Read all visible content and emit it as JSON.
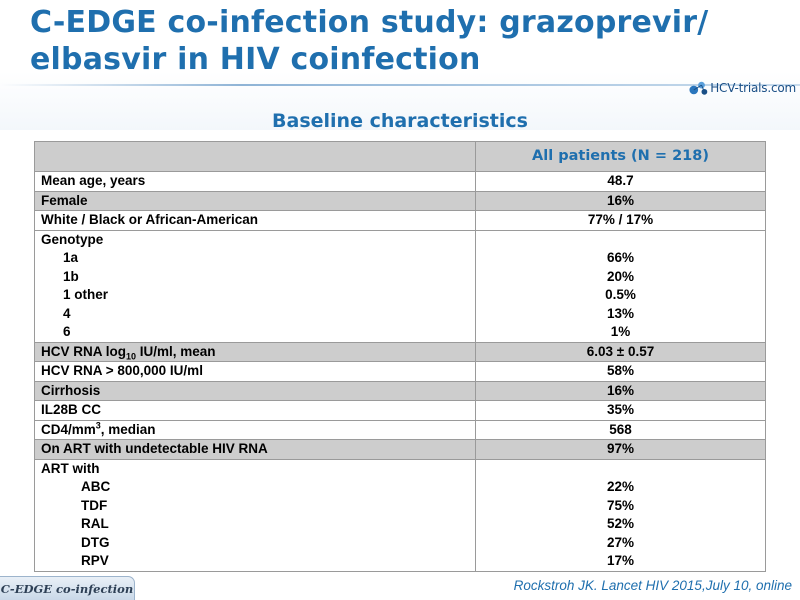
{
  "slide": {
    "title": "C-EDGE co-infection study: grazoprevir/ elbasvir in HIV coinfection",
    "subtitle": "Baseline characteristics"
  },
  "logo": {
    "text": "HCV-trials.com",
    "icon": "molecule-icon"
  },
  "table": {
    "header_value": "All patients (N = 218)",
    "rows": {
      "age": {
        "label": "Mean age, years",
        "value": "48.7"
      },
      "female": {
        "label": "Female",
        "value": "16%"
      },
      "race": {
        "label": "White / Black or African-American",
        "value": "77% / 17%"
      },
      "genotype": {
        "label": "Genotype",
        "items": [
          {
            "label": "1a",
            "value": "66%"
          },
          {
            "label": "1b",
            "value": "20%"
          },
          {
            "label": "1 other",
            "value": "0.5%"
          },
          {
            "label": "4",
            "value": "13%"
          },
          {
            "label": "6",
            "value": "1%"
          }
        ]
      },
      "rna_log": {
        "label_prefix": "HCV RNA log",
        "label_sub": "10",
        "label_suffix": " IU/ml, mean",
        "value": "6.03 ± 0.57"
      },
      "rna_high": {
        "label": "HCV RNA > 800,000 IU/ml",
        "value": "58%"
      },
      "cirrhosis": {
        "label": "Cirrhosis",
        "value": "16%"
      },
      "il28b": {
        "label": "IL28B CC",
        "value": "35%"
      },
      "cd4": {
        "label_prefix": "CD4/mm",
        "label_sup": "3",
        "label_suffix": ", median",
        "value": "568"
      },
      "art_undetect": {
        "label": "On ART with undetectable HIV RNA",
        "value": "97%"
      },
      "art_with": {
        "label": "ART with",
        "items": [
          {
            "label": "ABC",
            "value": "22%"
          },
          {
            "label": "TDF",
            "value": "75%"
          },
          {
            "label": "RAL",
            "value": "52%"
          },
          {
            "label": "DTG",
            "value": "27%"
          },
          {
            "label": "RPV",
            "value": "17%"
          }
        ]
      }
    }
  },
  "footer": {
    "tab_label": "C-EDGE co-infection",
    "citation": "Rockstroh JK. Lancet HIV 2015,July 10, online"
  },
  "colors": {
    "title_blue": "#1f6fae",
    "row_shade": "#cdcdcd",
    "footer_tab": "#c9d8e8"
  }
}
